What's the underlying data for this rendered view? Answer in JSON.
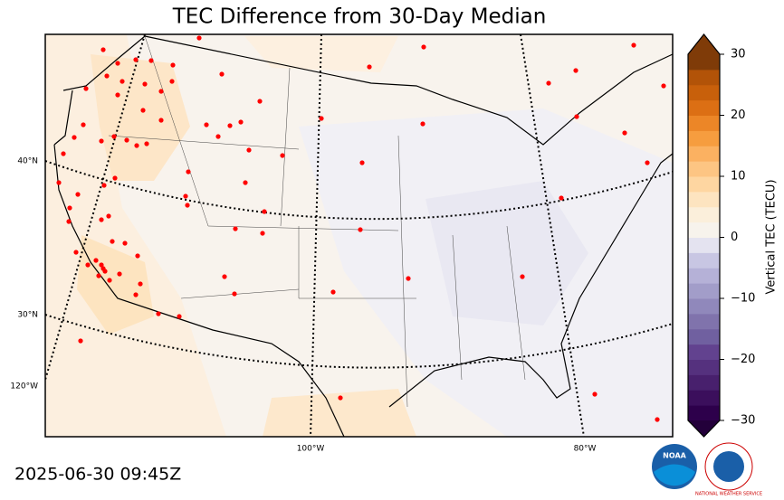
{
  "title": "TEC Difference from 30-Day Median",
  "timestamp": "2025-06-30 09:45Z",
  "map": {
    "lat_labels": [
      "40°N",
      "30°N"
    ],
    "lon_labels": [
      "120°W",
      "100°W",
      "80°W"
    ]
  },
  "colorbar": {
    "label": "Vertical TEC (TECU)",
    "clim": [
      -30,
      30
    ],
    "ticks": [
      {
        "value": -30,
        "label": "−30"
      },
      {
        "value": -20,
        "label": "−20"
      },
      {
        "value": -10,
        "label": "−10"
      },
      0,
      10,
      20,
      30
    ],
    "colors": [
      "#2d004b",
      "#3b0f5c",
      "#48206d",
      "#55317e",
      "#62428f",
      "#7060a0",
      "#8073ac",
      "#9088bb",
      "#a29dc9",
      "#b5b1d7",
      "#c8c6e3",
      "#e4e3f0",
      "#f7f3ec",
      "#fbefdb",
      "#fde4c0",
      "#fed6a1",
      "#fdc583",
      "#fbb161",
      "#f69d3f",
      "#ec8627",
      "#dc6f14",
      "#c8600b",
      "#b25308",
      "#7f3b08"
    ]
  },
  "logos": {
    "noaa": "NOAA",
    "nws": "NATIONAL WEATHER SERVICE"
  }
}
